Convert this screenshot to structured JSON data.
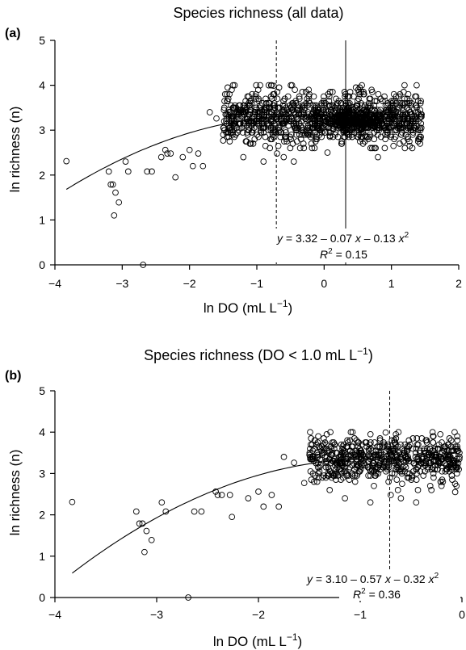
{
  "chart_data": [
    {
      "type": "scatter",
      "panel_label": "(a)",
      "title": "Species richness (all data)",
      "xlabel": "ln DO (mL L⁻¹)",
      "ylabel": "ln richness (n)",
      "xlim": [
        -4,
        2
      ],
      "ylim": [
        0,
        5
      ],
      "xticks": [
        -4,
        -3,
        -2,
        -1,
        0,
        1,
        2
      ],
      "yticks": [
        0,
        1,
        2,
        3,
        4,
        5
      ],
      "grid": false,
      "fit": {
        "a": 3.32,
        "b": -0.07,
        "c": -0.13,
        "x_from": -3.83,
        "x_to": 1.44
      },
      "equation": "y = 3.32 – 0.07 x – 0.13 x²",
      "r2_text": "R² = 0.15",
      "vlines": [
        {
          "x": -0.71,
          "style": "dashed"
        },
        {
          "x": 0.32,
          "style": "solid"
        }
      ],
      "sparse_points": [
        [
          -3.83,
          2.31
        ],
        [
          -3.2,
          2.08
        ],
        [
          -3.17,
          1.79
        ],
        [
          -3.14,
          1.79
        ],
        [
          -3.1,
          1.61
        ],
        [
          -3.12,
          1.1
        ],
        [
          -3.05,
          1.39
        ],
        [
          -2.95,
          2.3
        ],
        [
          -2.91,
          2.08
        ],
        [
          -2.69,
          0
        ],
        [
          -2.63,
          2.08
        ],
        [
          -2.56,
          2.08
        ],
        [
          -2.42,
          2.4
        ],
        [
          -2.36,
          2.56
        ],
        [
          -2.33,
          2.48
        ],
        [
          -2.28,
          2.48
        ],
        [
          -2.21,
          1.95
        ],
        [
          -2.1,
          2.4
        ],
        [
          -2.0,
          2.56
        ],
        [
          -1.95,
          2.2
        ],
        [
          -1.87,
          2.48
        ],
        [
          -1.8,
          2.2
        ],
        [
          -1.7,
          3.4
        ],
        [
          -1.6,
          3.26
        ],
        [
          -1.5,
          2.77
        ],
        [
          -1.4,
          3.0
        ],
        [
          -1.2,
          2.4
        ],
        [
          -0.9,
          2.3
        ],
        [
          -0.7,
          2.48
        ],
        [
          -0.6,
          2.4
        ],
        [
          -0.45,
          2.3
        ],
        [
          -0.3,
          2.6
        ],
        [
          0.05,
          2.5
        ],
        [
          0.8,
          2.4
        ],
        [
          1.2,
          2.6
        ],
        [
          -0.75,
          3.99
        ]
      ],
      "cluster": {
        "x_min": -1.5,
        "x_max": 1.45,
        "y_min": 2.6,
        "y_max": 4.0,
        "y_center": 3.28,
        "y_spread": 0.28,
        "count": 1050,
        "seed": 7,
        "dense_x": 0.45,
        "dense_count": 300
      }
    },
    {
      "type": "scatter",
      "panel_label": "(b)",
      "title": "Species richness (DO < 1.0 mL L⁻¹)",
      "xlabel": "ln DO (mL L⁻¹)",
      "ylabel": "ln richness (n)",
      "xlim": [
        -4,
        0
      ],
      "ylim": [
        0,
        5
      ],
      "xticks": [
        -4,
        -3,
        -2,
        -1,
        0
      ],
      "yticks": [
        0,
        1,
        2,
        3,
        4,
        5
      ],
      "grid": false,
      "fit": {
        "a": 3.1,
        "b": -0.57,
        "c": -0.32,
        "x_from": -3.83,
        "x_to": -0.02
      },
      "equation": "y = 3.10 – 0.57 x – 0.32 x²",
      "r2_text": "R² = 0.36",
      "vlines": [
        {
          "x": -0.71,
          "style": "dashed"
        }
      ],
      "sparse_points": [
        [
          -3.83,
          2.31
        ],
        [
          -3.2,
          2.08
        ],
        [
          -3.17,
          1.79
        ],
        [
          -3.14,
          1.79
        ],
        [
          -3.1,
          1.61
        ],
        [
          -3.12,
          1.1
        ],
        [
          -3.05,
          1.39
        ],
        [
          -2.95,
          2.3
        ],
        [
          -2.91,
          2.08
        ],
        [
          -2.69,
          0
        ],
        [
          -2.63,
          2.08
        ],
        [
          -2.56,
          2.08
        ],
        [
          -2.42,
          2.56
        ],
        [
          -2.4,
          2.48
        ],
        [
          -2.36,
          2.48
        ],
        [
          -2.28,
          2.48
        ],
        [
          -2.26,
          1.95
        ],
        [
          -2.1,
          2.4
        ],
        [
          -2.0,
          2.56
        ],
        [
          -1.95,
          2.2
        ],
        [
          -1.87,
          2.48
        ],
        [
          -1.8,
          2.2
        ],
        [
          -1.75,
          3.4
        ],
        [
          -1.65,
          3.26
        ],
        [
          -1.55,
          2.77
        ],
        [
          -1.3,
          2.6
        ],
        [
          -1.15,
          2.4
        ],
        [
          -0.9,
          2.3
        ],
        [
          -0.7,
          2.48
        ],
        [
          -0.6,
          2.4
        ],
        [
          -0.45,
          2.3
        ],
        [
          -0.3,
          2.6
        ],
        [
          -0.75,
          3.99
        ]
      ],
      "cluster": {
        "x_min": -1.5,
        "x_max": -0.02,
        "y_min": 2.4,
        "y_max": 4.0,
        "y_center": 3.35,
        "y_spread": 0.27,
        "count": 620,
        "seed": 13,
        "dense_x": null,
        "dense_count": 0
      }
    }
  ]
}
